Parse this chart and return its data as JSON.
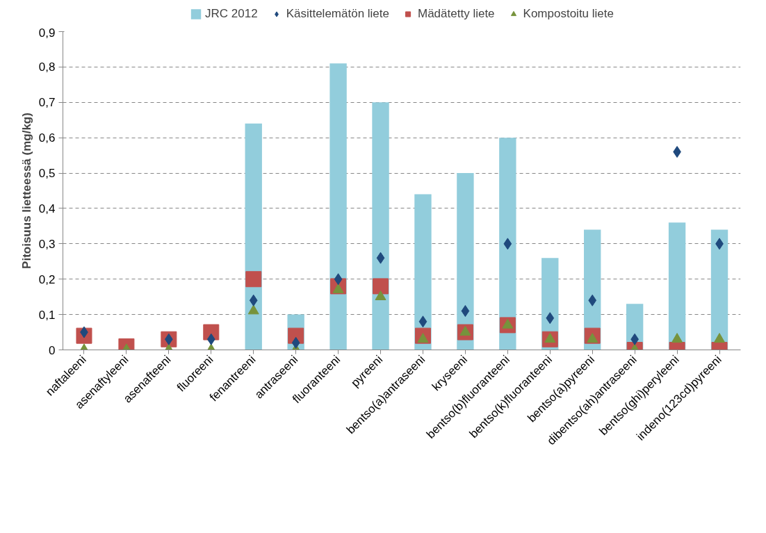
{
  "chart_data": {
    "type": "bar",
    "ylabel": "Pitoisuus lietteessä (mg/kg)",
    "categories": [
      "naftaleeni",
      "asenaftyleeni",
      "asenafteeni",
      "fluoreeni",
      "fenantreeni",
      "antraseeni",
      "fluoranteeni",
      "pyreeni",
      "bentso(a)antraseeni",
      "kryseeni",
      "bentso(b)fluoranteeni",
      "bentso(k)fluoranteeni",
      "bentso(a)pyreeni",
      "dibentso(ah)antraseeni",
      "bentso(ghi)peryleeni",
      "indeno(123cd)pyreeni"
    ],
    "series": [
      {
        "name": "JRC 2012",
        "color": "#92cddc",
        "values": [
          null,
          null,
          null,
          null,
          0.64,
          0.1,
          0.81,
          0.7,
          0.44,
          0.5,
          0.6,
          0.26,
          0.34,
          0.13,
          0.36,
          0.34
        ]
      },
      {
        "name": "Käsittelemätön liete",
        "type": "scatter",
        "marker": "diamond",
        "color": "#1f497d",
        "values": [
          0.05,
          null,
          0.03,
          0.03,
          0.14,
          0.02,
          0.2,
          0.26,
          0.08,
          0.11,
          0.3,
          0.09,
          0.14,
          0.03,
          0.56,
          0.3
        ]
      },
      {
        "name": "Mädätetty liete",
        "type": "scatter",
        "marker": "square",
        "color": "#c0504d",
        "values": [
          0.04,
          0.01,
          0.03,
          0.05,
          0.2,
          0.04,
          0.18,
          0.18,
          0.04,
          0.05,
          0.07,
          0.03,
          0.04,
          0.0,
          0.0,
          0.0
        ]
      },
      {
        "name": "Kompostoitu liete",
        "type": "scatter",
        "marker": "triangle",
        "color": "#77933c",
        "values": [
          0.0,
          0.0,
          0.0,
          0.0,
          0.11,
          0.0,
          0.17,
          0.15,
          0.03,
          0.05,
          0.07,
          0.03,
          0.03,
          0.0,
          0.03,
          0.03
        ]
      }
    ],
    "ylim": [
      0,
      0.9
    ],
    "yticks": [
      {
        "value": 0,
        "label": "0"
      },
      {
        "value": 0.1,
        "label": "0,1"
      },
      {
        "value": 0.2,
        "label": "0,2"
      },
      {
        "value": 0.3,
        "label": "0,3"
      },
      {
        "value": 0.4,
        "label": "0,4"
      },
      {
        "value": 0.5,
        "label": "0,5"
      },
      {
        "value": 0.6,
        "label": "0,6"
      },
      {
        "value": 0.7,
        "label": "0,7"
      },
      {
        "value": 0.8,
        "label": "0,8"
      },
      {
        "value": 0.9,
        "label": "0,9"
      }
    ],
    "grid": "y",
    "legend": "top"
  }
}
